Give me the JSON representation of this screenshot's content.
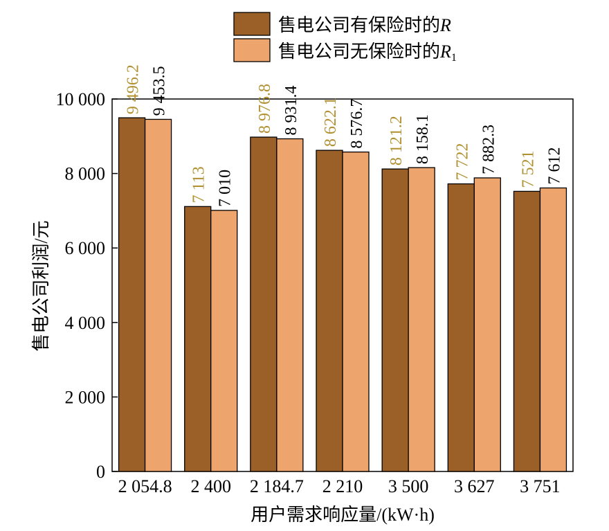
{
  "chart_data": {
    "type": "bar",
    "xlabel": "用户需求响应量/(kW·h)",
    "ylabel": "售电公司利润/元",
    "ylim": [
      0,
      10000
    ],
    "yticks": [
      0,
      2000,
      4000,
      6000,
      8000,
      10000
    ],
    "ytick_labels": [
      "0",
      "2 000",
      "4 000",
      "6 000",
      "8 000",
      "10 000"
    ],
    "categories": [
      "2 054.8",
      "2 400",
      "2 184.7",
      "2 210",
      "3 500",
      "3 627",
      "3 751"
    ],
    "series": [
      {
        "name": "售电公司有保险时的R",
        "legend_prefix": "售电公司有保险时的",
        "legend_symbol": "R",
        "legend_subscript": "",
        "color": "#9b5f28",
        "label_color": "#b09030",
        "values": [
          9496.2,
          7113,
          8976.8,
          8622.1,
          8121.2,
          7722,
          7521
        ],
        "value_labels": [
          "9 496.2",
          "7 113",
          "8 976.8",
          "8 622.1",
          "8 121.2",
          "7 722",
          "7 521"
        ]
      },
      {
        "name": "售电公司无保险时的R1",
        "legend_prefix": "售电公司无保险时的",
        "legend_symbol": "R",
        "legend_subscript": "1",
        "color": "#eda46d",
        "label_color": "#000000",
        "values": [
          9453.5,
          7010,
          8931.4,
          8576.7,
          8158.1,
          7882.3,
          7612
        ],
        "value_labels": [
          "9 453.5",
          "7 010",
          "8 931.4",
          "8 576.7",
          "8 158.1",
          "7 882.3",
          "7 612"
        ]
      }
    ],
    "legend_position": "top-right",
    "grid": false
  }
}
